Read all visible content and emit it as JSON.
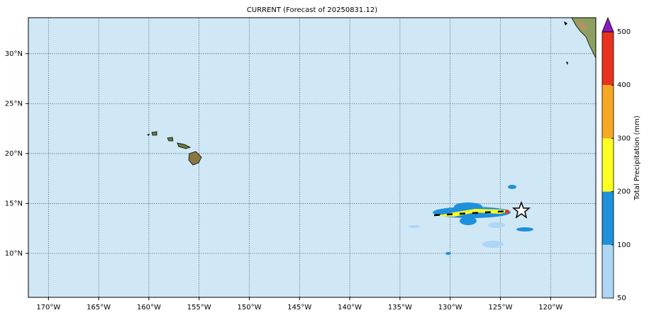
{
  "chart_data": {
    "type": "map",
    "title": "CURRENT (Forecast of 20250831.12)",
    "xlim": [
      -172,
      -115.5
    ],
    "ylim": [
      5.6,
      33.6
    ],
    "xticks": [
      {
        "value": -170,
        "label": "170°W"
      },
      {
        "value": -165,
        "label": "165°W"
      },
      {
        "value": -160,
        "label": "160°W"
      },
      {
        "value": -155,
        "label": "155°W"
      },
      {
        "value": -150,
        "label": "150°W"
      },
      {
        "value": -145,
        "label": "145°W"
      },
      {
        "value": -140,
        "label": "140°W"
      },
      {
        "value": -135,
        "label": "135°W"
      },
      {
        "value": -130,
        "label": "130°W"
      },
      {
        "value": -125,
        "label": "125°W"
      },
      {
        "value": -120,
        "label": "120°W"
      }
    ],
    "yticks": [
      {
        "value": 10,
        "label": "10°N"
      },
      {
        "value": 15,
        "label": "15°N"
      },
      {
        "value": 20,
        "label": "20°N"
      },
      {
        "value": 25,
        "label": "25°N"
      },
      {
        "value": 30,
        "label": "30°N"
      }
    ],
    "grid": true,
    "colorbar": {
      "label": "Total Precipitation (mm)",
      "levels": [
        50,
        100,
        200,
        300,
        400,
        500
      ],
      "colors": [
        "#aed6f5",
        "#1f90dc",
        "#ffff22",
        "#f7a823",
        "#e8321f"
      ],
      "extend_color": "#8b1bbf"
    }
  }
}
